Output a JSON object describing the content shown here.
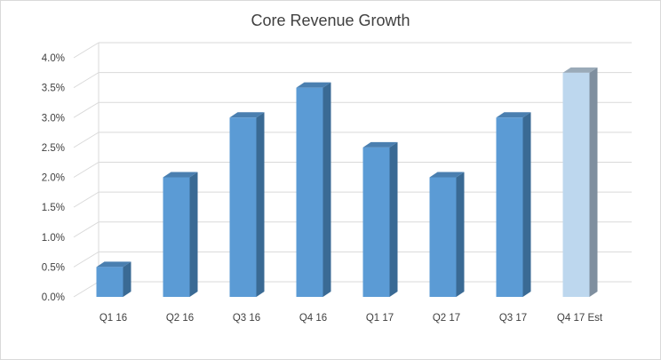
{
  "chart_data": {
    "type": "bar",
    "title": "Core Revenue Growth",
    "xlabel": "",
    "ylabel": "",
    "categories": [
      "Q1 16",
      "Q2 16",
      "Q3 16",
      "Q4 16",
      "Q1 17",
      "Q2 17",
      "Q3 17",
      "Q4 17 Est"
    ],
    "values": [
      0.5,
      2.0,
      3.0,
      3.5,
      2.5,
      2.0,
      3.0,
      3.75
    ],
    "ylim": [
      0,
      4.0
    ],
    "yticks": [
      "0.0%",
      "0.5%",
      "1.0%",
      "1.5%",
      "2.0%",
      "2.5%",
      "3.0%",
      "3.5%",
      "4.0%"
    ],
    "grid": true,
    "legend": "none",
    "style": "3d-column",
    "colors": {
      "bar": "#5b9bd5",
      "bar_side": "#3a6a94",
      "bar_top": "#4a7fb0",
      "estimate_bar": "#bdd7ee",
      "estimate_side": "#7f8f9f",
      "estimate_top": "#9aaab8",
      "grid": "#d9d9d9",
      "text": "#404040"
    }
  }
}
